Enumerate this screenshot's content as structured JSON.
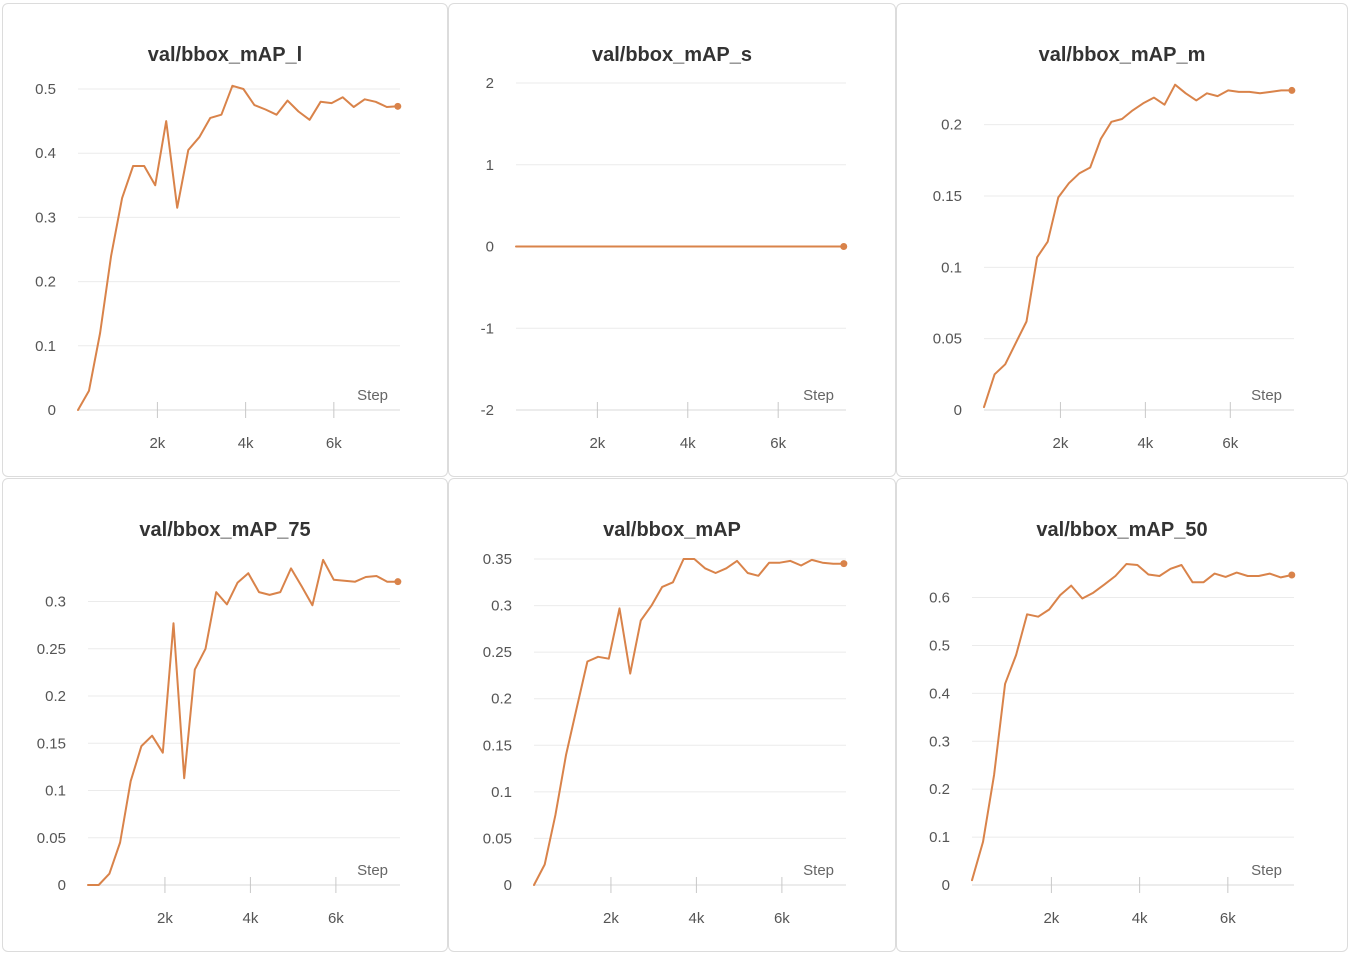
{
  "series_color": "#d9834a",
  "axis_label": "Step",
  "x_ticks": [
    2000,
    4000,
    6000
  ],
  "x_tick_labels": [
    "2k",
    "4k",
    "6k"
  ],
  "x_range": [
    200,
    7500
  ],
  "charts": [
    {
      "id": "map_l",
      "chart_data": {
        "type": "line",
        "title": "val/bbox_mAP_l",
        "xlabel": "Step",
        "ylabel": "",
        "ylim": [
          0,
          0.5
        ],
        "y_ticks": [
          0,
          0.1,
          0.2,
          0.3,
          0.4,
          0.5
        ],
        "y_tick_labels": [
          "0",
          "0.1",
          "0.2",
          "0.3",
          "0.4",
          "0.5"
        ],
        "x": [
          200,
          450,
          700,
          950,
          1200,
          1450,
          1700,
          1950,
          2200,
          2450,
          2700,
          2950,
          3200,
          3450,
          3700,
          3950,
          4200,
          4450,
          4700,
          4950,
          5200,
          5450,
          5700,
          5950,
          6200,
          6450,
          6700,
          6950,
          7200,
          7450
        ],
        "y": [
          0,
          0.03,
          0.12,
          0.24,
          0.33,
          0.38,
          0.38,
          0.35,
          0.45,
          0.315,
          0.405,
          0.425,
          0.455,
          0.46,
          0.505,
          0.5,
          0.475,
          0.468,
          0.46,
          0.482,
          0.465,
          0.452,
          0.48,
          0.478,
          0.487,
          0.472,
          0.484,
          0.48,
          0.472,
          0.473
        ]
      }
    },
    {
      "id": "map_s",
      "chart_data": {
        "type": "line",
        "title": "val/bbox_mAP_s",
        "xlabel": "Step",
        "ylabel": "",
        "ylim": [
          -2,
          2
        ],
        "y_ticks": [
          -2,
          -1,
          0,
          1,
          2
        ],
        "y_tick_labels": [
          "-2",
          "-1",
          "0",
          "1",
          "2"
        ],
        "x": [
          200,
          450,
          700,
          950,
          1200,
          1450,
          1700,
          1950,
          2200,
          2450,
          2700,
          2950,
          3200,
          3450,
          3700,
          3950,
          4200,
          4450,
          4700,
          4950,
          5200,
          5450,
          5700,
          5950,
          6200,
          6450,
          6700,
          6950,
          7200,
          7450
        ],
        "y": [
          0,
          0,
          0,
          0,
          0,
          0,
          0,
          0,
          0,
          0,
          0,
          0,
          0,
          0,
          0,
          0,
          0,
          0,
          0,
          0,
          0,
          0,
          0,
          0,
          0,
          0,
          0,
          0,
          0,
          0
        ]
      }
    },
    {
      "id": "map_m",
      "chart_data": {
        "type": "line",
        "title": "val/bbox_mAP_m",
        "xlabel": "Step",
        "ylabel": "",
        "ylim": [
          0,
          0.225
        ],
        "y_ticks": [
          0,
          0.05,
          0.1,
          0.15,
          0.2
        ],
        "y_tick_labels": [
          "0",
          "0.05",
          "0.1",
          "0.15",
          "0.2"
        ],
        "x": [
          200,
          450,
          700,
          950,
          1200,
          1450,
          1700,
          1950,
          2200,
          2450,
          2700,
          2950,
          3200,
          3450,
          3700,
          3950,
          4200,
          4450,
          4700,
          4950,
          5200,
          5450,
          5700,
          5950,
          6200,
          6450,
          6700,
          6950,
          7200,
          7450
        ],
        "y": [
          0.002,
          0.025,
          0.032,
          0.047,
          0.062,
          0.107,
          0.118,
          0.149,
          0.159,
          0.166,
          0.17,
          0.19,
          0.202,
          0.204,
          0.21,
          0.215,
          0.219,
          0.214,
          0.228,
          0.222,
          0.217,
          0.222,
          0.22,
          0.224,
          0.223,
          0.223,
          0.222,
          0.223,
          0.224,
          0.224
        ]
      }
    },
    {
      "id": "map_75",
      "chart_data": {
        "type": "line",
        "title": "val/bbox_mAP_75",
        "xlabel": "Step",
        "ylabel": "",
        "ylim": [
          0,
          0.345
        ],
        "y_ticks": [
          0,
          0.05,
          0.1,
          0.15,
          0.2,
          0.25,
          0.3
        ],
        "y_tick_labels": [
          "0",
          "0.05",
          "0.1",
          "0.15",
          "0.2",
          "0.25",
          "0.3"
        ],
        "x": [
          200,
          450,
          700,
          950,
          1200,
          1450,
          1700,
          1950,
          2200,
          2450,
          2700,
          2950,
          3200,
          3450,
          3700,
          3950,
          4200,
          4450,
          4700,
          4950,
          5200,
          5450,
          5700,
          5950,
          6200,
          6450,
          6700,
          6950,
          7200,
          7450
        ],
        "y": [
          0,
          0,
          0.012,
          0.045,
          0.11,
          0.147,
          0.158,
          0.14,
          0.277,
          0.113,
          0.228,
          0.25,
          0.31,
          0.297,
          0.32,
          0.33,
          0.31,
          0.307,
          0.31,
          0.335,
          0.316,
          0.296,
          0.344,
          0.323,
          0.322,
          0.321,
          0.326,
          0.327,
          0.321,
          0.321
        ]
      }
    },
    {
      "id": "map",
      "chart_data": {
        "type": "line",
        "title": "val/bbox_mAP",
        "xlabel": "Step",
        "ylabel": "",
        "ylim": [
          0,
          0.35
        ],
        "y_ticks": [
          0,
          0.05,
          0.1,
          0.15,
          0.2,
          0.25,
          0.3,
          0.35
        ],
        "y_tick_labels": [
          "0",
          "0.05",
          "0.1",
          "0.15",
          "0.2",
          "0.25",
          "0.3",
          "0.35"
        ],
        "x": [
          200,
          450,
          700,
          950,
          1200,
          1450,
          1700,
          1950,
          2200,
          2450,
          2700,
          2950,
          3200,
          3450,
          3700,
          3950,
          4200,
          4450,
          4700,
          4950,
          5200,
          5450,
          5700,
          5950,
          6200,
          6450,
          6700,
          6950,
          7200,
          7450
        ],
        "y": [
          0,
          0.022,
          0.075,
          0.14,
          0.19,
          0.24,
          0.245,
          0.243,
          0.297,
          0.227,
          0.284,
          0.3,
          0.32,
          0.325,
          0.35,
          0.35,
          0.34,
          0.335,
          0.34,
          0.348,
          0.335,
          0.332,
          0.346,
          0.346,
          0.348,
          0.343,
          0.349,
          0.346,
          0.345,
          0.345
        ]
      }
    },
    {
      "id": "map_50",
      "chart_data": {
        "type": "line",
        "title": "val/bbox_mAP_50",
        "xlabel": "Step",
        "ylabel": "",
        "ylim": [
          0,
          0.67
        ],
        "y_ticks": [
          0,
          0.1,
          0.2,
          0.3,
          0.4,
          0.5,
          0.6
        ],
        "y_tick_labels": [
          "0",
          "0.1",
          "0.2",
          "0.3",
          "0.4",
          "0.5",
          "0.6"
        ],
        "x": [
          200,
          450,
          700,
          950,
          1200,
          1450,
          1700,
          1950,
          2200,
          2450,
          2700,
          2950,
          3200,
          3450,
          3700,
          3950,
          4200,
          4450,
          4700,
          4950,
          5200,
          5450,
          5700,
          5950,
          6200,
          6450,
          6700,
          6950,
          7200,
          7450
        ],
        "y": [
          0.01,
          0.09,
          0.23,
          0.42,
          0.48,
          0.565,
          0.56,
          0.575,
          0.605,
          0.625,
          0.598,
          0.61,
          0.627,
          0.645,
          0.67,
          0.668,
          0.648,
          0.645,
          0.66,
          0.668,
          0.632,
          0.632,
          0.65,
          0.643,
          0.652,
          0.645,
          0.645,
          0.65,
          0.642,
          0.647
        ]
      }
    }
  ]
}
